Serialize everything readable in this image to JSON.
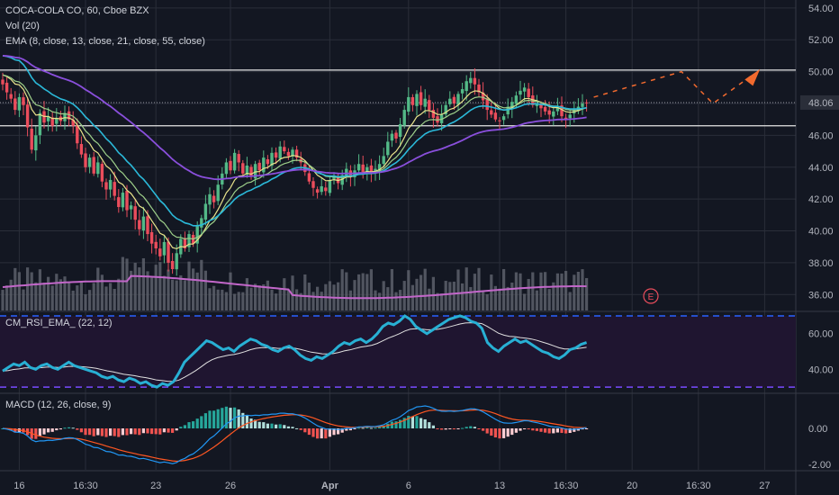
{
  "legend": {
    "symbol": "COCA-COLA CO, 60, Cboe BZX",
    "vol": "Vol (20)",
    "ema": "EMA (8, close, 13, close, 21, close, 55, close)",
    "rsi": "CM_RSI_EMA_ (22, 12)",
    "macd": "MACD (12, 26, close, 9)"
  },
  "colors": {
    "background": "#131722",
    "up": "#53b987",
    "down": "#eb4d5c",
    "grid": "#2a2e39",
    "axis_text": "#b2b5be",
    "ema8": "#e8e28b",
    "ema13": "#9ed08a",
    "ema21": "#2bb9d9",
    "ema55": "#8a4fdc",
    "vol_ma": "#c267c9",
    "rsi": "#28b0d4",
    "rsi_ema": "#e0e0e0",
    "rsi_band_line": "#2962ff",
    "rsi_band_lower": "#7a4bff",
    "macd_line": "#2196f3",
    "signal_line": "#ff5722",
    "drawing_arrow": "#f26a2e",
    "price_badge_bg": "#2a2e39"
  },
  "chart_data": [
    {
      "type": "candlestick",
      "ylim": [
        35,
        54.5
      ],
      "price_ticks": [
        "54.00",
        "52.00",
        "50.00",
        "48.00",
        "46.00",
        "44.00",
        "42.00",
        "40.00",
        "38.00",
        "36.00"
      ],
      "price_tick_values": [
        54,
        52,
        50,
        48,
        46,
        44,
        42,
        40,
        38,
        36
      ],
      "last_price": "48.06",
      "last_price_value": 48.06,
      "horizontal_lines": [
        50.1,
        46.6
      ],
      "x_ticks": [
        "16",
        "16:30",
        "23",
        "26",
        "Apr",
        "6",
        "13",
        "16:30",
        "20",
        "16:30",
        "27"
      ],
      "x_tick_bars": [
        4,
        20,
        37,
        55,
        79,
        98,
        120,
        136,
        152,
        168,
        184
      ],
      "ohlc_closes": [
        49.2,
        48.7,
        48.3,
        47.6,
        48.4,
        47.9,
        46.5,
        45.1,
        46.0,
        47.4,
        46.8,
        47.2,
        46.6,
        47.1,
        46.9,
        47.4,
        47.0,
        46.6,
        45.5,
        44.8,
        44.0,
        44.6,
        43.6,
        44.3,
        43.1,
        42.6,
        43.2,
        42.2,
        41.5,
        42.4,
        41.3,
        41.6,
        40.7,
        40.1,
        40.9,
        39.8,
        39.2,
        38.9,
        38.4,
        39.3,
        38.0,
        37.6,
        38.6,
        39.5,
        38.9,
        39.8,
        39.2,
        40.3,
        40.8,
        41.7,
        42.3,
        41.8,
        42.9,
        43.6,
        44.3,
        43.8,
        44.9,
        44.3,
        43.6,
        44.1,
        43.4,
        44.2,
        43.8,
        44.6,
        44.2,
        44.9,
        44.6,
        45.3,
        45.0,
        44.7,
        45.1,
        44.6,
        44.3,
        43.7,
        43.1,
        42.7,
        42.4,
        42.8,
        42.5,
        43.2,
        43.4,
        43.0,
        43.5,
        43.9,
        43.4,
        43.8,
        44.2,
        43.7,
        44.0,
        43.6,
        43.9,
        44.2,
        44.7,
        45.6,
        46.1,
        45.8,
        46.7,
        47.6,
        48.4,
        47.9,
        48.6,
        47.9,
        48.3,
        47.6,
        47.1,
        46.8,
        47.3,
        47.9,
        48.3,
        48.0,
        48.6,
        48.9,
        49.4,
        49.6,
        49.2,
        48.7,
        48.2,
        47.6,
        47.3,
        47.0,
        46.9,
        47.2,
        47.8,
        48.1,
        48.5,
        48.8,
        49.0,
        48.4,
        47.9,
        48.0,
        47.7,
        47.5,
        47.3,
        47.5,
        47.8,
        47.2,
        47.0,
        47.3,
        47.6,
        47.8,
        48.0,
        48.06
      ]
    },
    {
      "type": "bar",
      "name": "Vol (20)",
      "values_note": "volume histogram, unlabelled"
    },
    {
      "type": "line",
      "name": "CM_RSI_EMA_ (22, 12)",
      "ylim": [
        27,
        72
      ],
      "ticks": [
        "60.00",
        "40.00"
      ],
      "tick_values": [
        60,
        40
      ],
      "bands": [
        70,
        30
      ],
      "rsi_values": [
        39,
        41,
        43,
        42,
        44,
        41,
        40,
        42,
        43,
        41,
        40,
        42,
        44,
        42,
        41,
        40,
        39,
        38,
        36,
        35,
        36,
        34,
        33,
        35,
        34,
        32,
        33,
        31,
        30,
        32,
        31,
        33,
        38,
        44,
        47,
        50,
        53,
        56,
        55,
        53,
        51,
        52,
        50,
        53,
        55,
        57,
        56,
        54,
        53,
        51,
        50,
        52,
        53,
        51,
        48,
        46,
        45,
        47,
        46,
        48,
        50,
        53,
        55,
        54,
        56,
        57,
        55,
        57,
        60,
        64,
        66,
        65,
        67,
        70,
        68,
        64,
        62,
        60,
        62,
        64,
        66,
        68,
        69,
        70,
        69,
        67,
        66,
        63,
        55,
        52,
        50,
        53,
        55,
        57,
        55,
        56,
        54,
        52,
        50,
        49,
        47,
        46,
        48,
        51,
        52,
        54,
        55
      ]
    },
    {
      "type": "bar",
      "name": "MACD (12, 26, close, 9)",
      "ylim": [
        -2.3,
        1.9
      ],
      "ticks": [
        "0.00",
        "-2.00"
      ],
      "tick_values": [
        0,
        -2
      ]
    }
  ]
}
